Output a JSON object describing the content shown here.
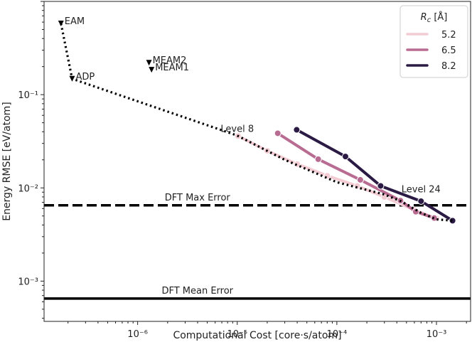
{
  "chart_data": {
    "type": "line",
    "xlabel": "Computational Cost [core·s/atom]",
    "ylabel": "Energy RMSE [eV/atom]",
    "xscale": "log",
    "yscale": "log",
    "xlim": [
      1.15e-07,
      0.0022
    ],
    "ylim": [
      0.00037,
      1.0
    ],
    "grid": false,
    "x_ticks": [
      {
        "value": 1e-06,
        "label": "10⁻⁶"
      },
      {
        "value": 1e-05,
        "label": "10⁻⁵"
      },
      {
        "value": 0.0001,
        "label": "10⁻⁴"
      },
      {
        "value": 0.001,
        "label": "10⁻³"
      }
    ],
    "y_ticks": [
      {
        "value": 0.001,
        "label": "10⁻³"
      },
      {
        "value": 0.01,
        "label": "10⁻²"
      },
      {
        "value": 0.1,
        "label": "10⁻¹"
      }
    ],
    "legend": {
      "title_main": "R",
      "title_sub": "c",
      "title_rest": " [Å]",
      "placement": "top-right"
    },
    "series": [
      {
        "name": "5.2",
        "color": "#f3cbd3",
        "x": [
          1.02e-05,
          2e-05,
          4e-05,
          8e-05,
          0.00016,
          0.0003,
          0.0006,
          0.001
        ],
        "y": [
          0.036,
          0.025,
          0.018,
          0.0135,
          0.0105,
          0.008,
          0.0058,
          0.0047
        ]
      },
      {
        "name": "6.5",
        "color": "#b96c92",
        "x": [
          2.55e-05,
          6.5e-05,
          0.000172,
          0.000435,
          0.00062,
          0.00095
        ],
        "y": [
          0.0385,
          0.0203,
          0.0122,
          0.0073,
          0.00555,
          0.00475
        ]
      },
      {
        "name": "8.2",
        "color": "#2a1a44",
        "x": [
          3.95e-05,
          0.000122,
          0.000275,
          0.0007,
          0.00145
        ],
        "y": [
          0.042,
          0.0217,
          0.0105,
          0.0072,
          0.00445
        ]
      }
    ],
    "pareto_front": {
      "x": [
        1.7e-07,
        2.2e-07,
        9.6e-06,
        1.02e-05,
        3e-05,
        0.0001,
        0.0003,
        0.00044,
        0.0007,
        0.001,
        0.00145
      ],
      "y": [
        0.58,
        0.148,
        0.037,
        0.036,
        0.02,
        0.0115,
        0.0085,
        0.0072,
        0.0054,
        0.0046,
        0.00445
      ]
    },
    "classical_potentials": [
      {
        "label": "EAM",
        "x": 1.7e-07,
        "y": 0.58
      },
      {
        "label": "ADP",
        "x": 2.2e-07,
        "y": 0.148
      },
      {
        "label": "MEAM2",
        "x": 1.3e-06,
        "y": 0.22
      },
      {
        "label": "MEAM1",
        "x": 1.38e-06,
        "y": 0.185
      }
    ],
    "reference_lines": [
      {
        "label": "DFT Max Error",
        "y": 0.0065,
        "style": "dashed"
      },
      {
        "label": "DFT Mean Error",
        "y": 0.00065,
        "style": "solid"
      }
    ],
    "annotations": [
      {
        "text": "Level 8",
        "x": 1e-05,
        "y": 0.04
      },
      {
        "text": "Level 24",
        "x": 0.0007,
        "y": 0.009
      }
    ]
  }
}
